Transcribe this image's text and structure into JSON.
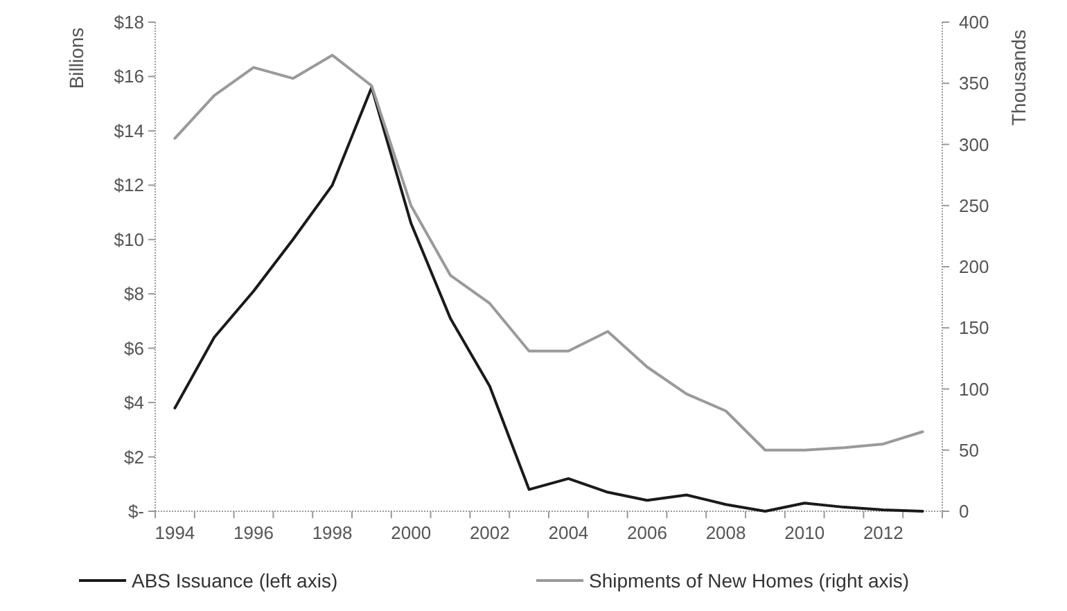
{
  "chart_data": {
    "type": "line",
    "ylabel": "Billions",
    "y2label": "Thousands",
    "categories": [
      "1994",
      null,
      "1996",
      null,
      "1998",
      null,
      "2000",
      null,
      "2002",
      null,
      "2004",
      null,
      "2006",
      null,
      "2008",
      null,
      "2010",
      null,
      "2012",
      null
    ],
    "series": [
      {
        "name": "ABS Issuance (left axis)",
        "color": "#1a1a1a",
        "values": [
          3.8,
          6.4,
          8.1,
          10,
          12,
          15.6,
          10.6,
          7.1,
          4.6,
          0.8,
          1.2,
          0.7,
          0.4,
          0.6,
          0.25,
          0,
          0.3,
          0.15,
          0.05,
          0
        ]
      },
      {
        "name": "Shipments of New Homes (right axis)",
        "color": "#9a9a9a",
        "axis": "y2",
        "values": [
          305,
          340,
          363,
          354,
          373,
          348,
          250,
          193,
          170,
          131,
          131,
          147,
          118,
          96,
          82,
          50,
          50,
          52,
          55,
          65
        ]
      }
    ],
    "ylim": [
      0,
      18
    ],
    "yticks": [
      {
        "value": 0,
        "label": "$-"
      },
      {
        "value": 2,
        "label": "$2"
      },
      {
        "value": 4,
        "label": "$4"
      },
      {
        "value": 6,
        "label": "$6"
      },
      {
        "value": 8,
        "label": "$8"
      },
      {
        "value": 10,
        "label": "$10"
      },
      {
        "value": 12,
        "label": "$12"
      },
      {
        "value": 14,
        "label": "$14"
      },
      {
        "value": 16,
        "label": "$16"
      },
      {
        "value": 18,
        "label": "$18"
      }
    ],
    "y2lim": [
      0,
      400
    ],
    "y2ticks": [
      0,
      50,
      100,
      150,
      200,
      250,
      300,
      350,
      400
    ],
    "grid": false,
    "legend": "bottom",
    "marker": "none",
    "line_style": "solid"
  }
}
